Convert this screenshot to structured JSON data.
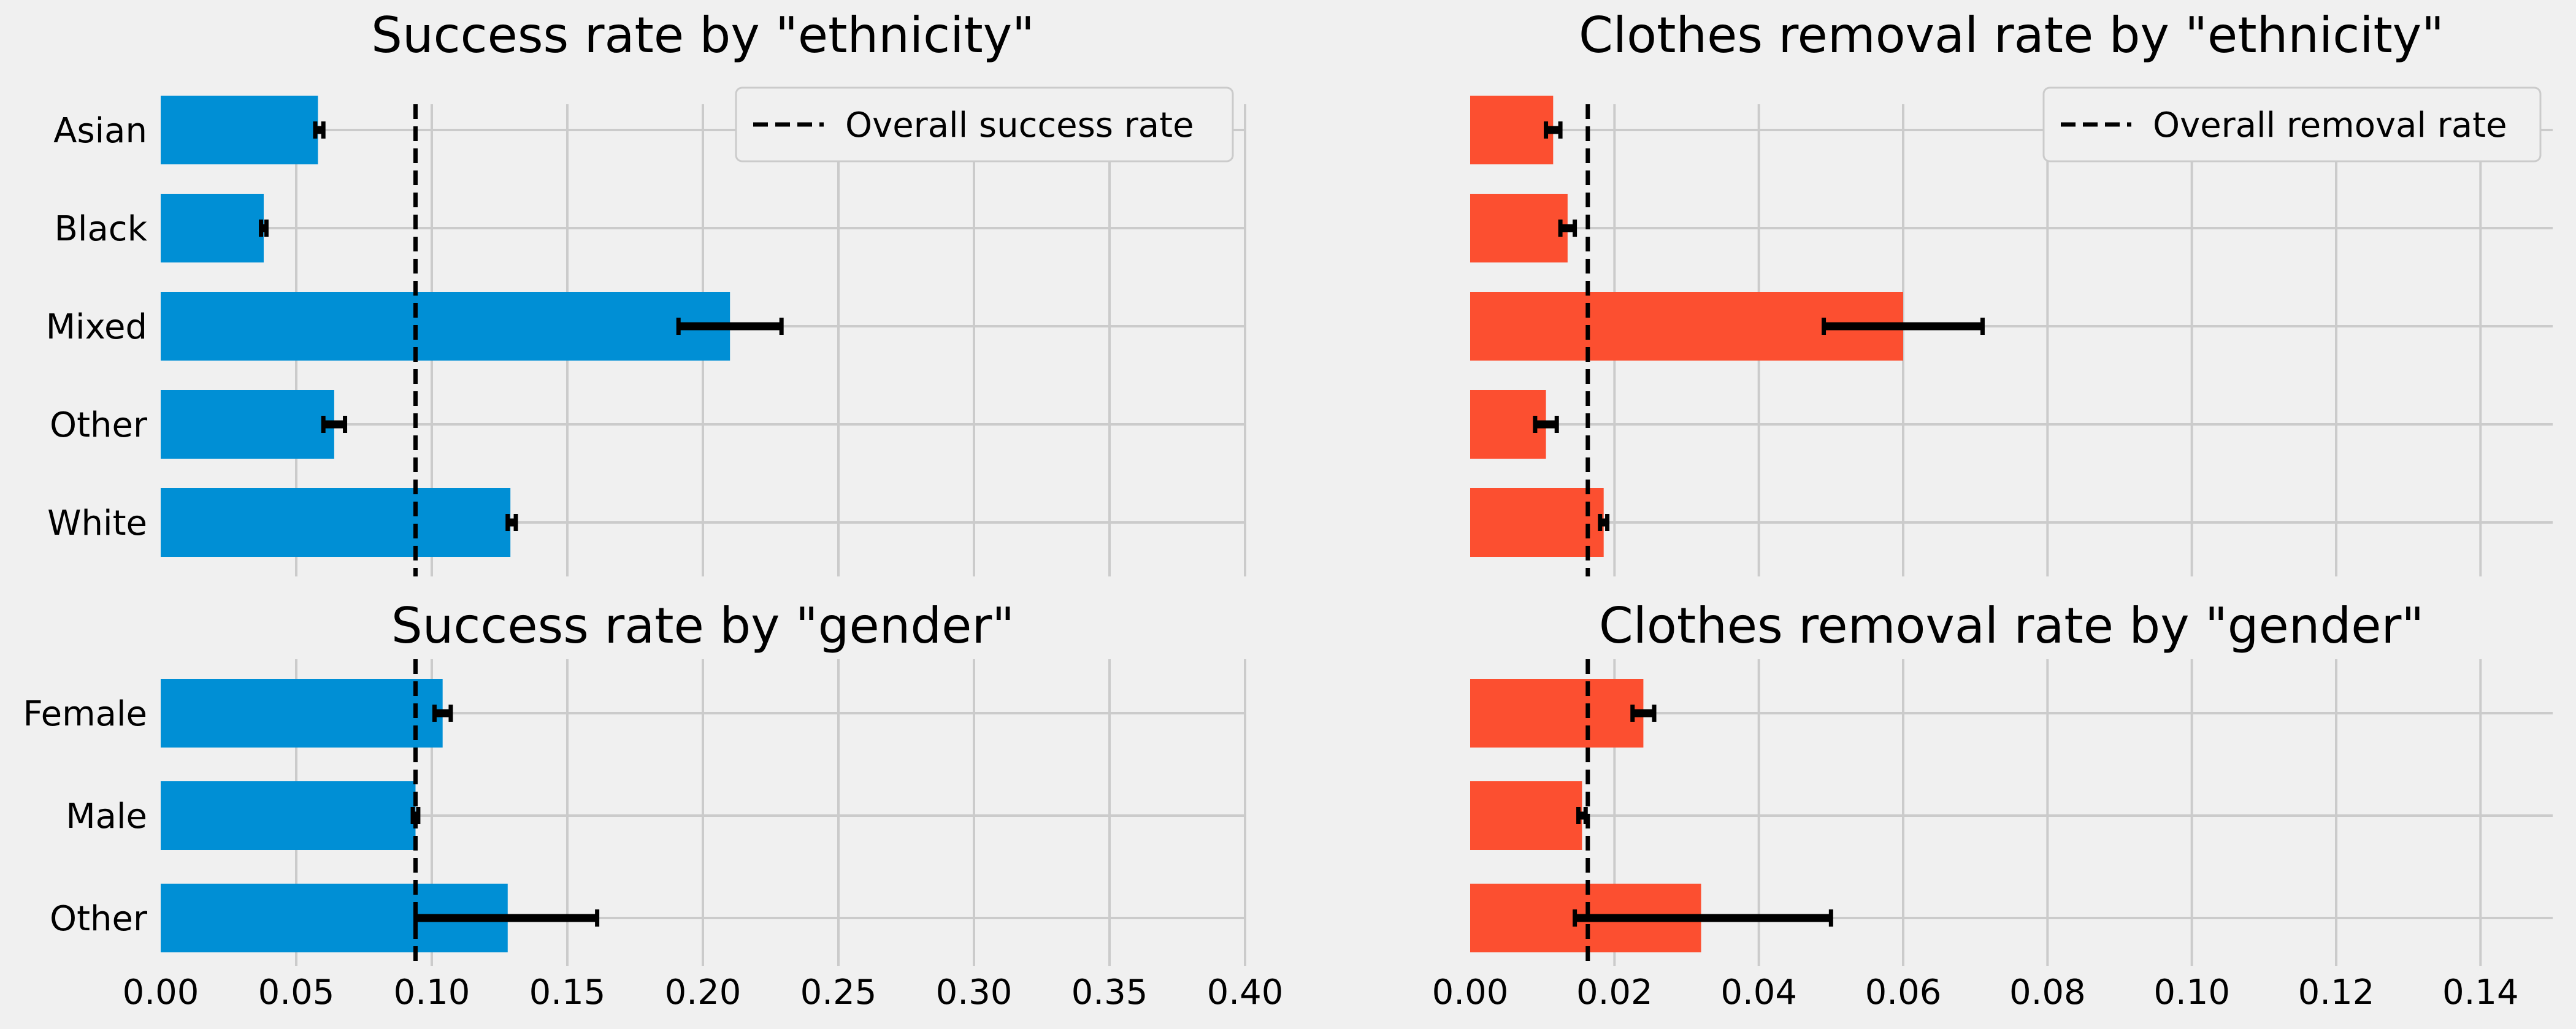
{
  "colors": {
    "success": "#008fd5",
    "removal": "#fc4f30",
    "background": "#f0f0f0",
    "grid": "#cbcbcb",
    "errorbar": "#000000",
    "refline": "#000000"
  },
  "chart_data": [
    {
      "type": "bar",
      "orientation": "horizontal",
      "title": "Success rate by \"ethnicity\"",
      "categories": [
        "Asian",
        "Black",
        "Mixed",
        "Other",
        "White"
      ],
      "values": [
        0.058,
        0.038,
        0.21,
        0.064,
        0.129
      ],
      "error_low": [
        0.057,
        0.037,
        0.191,
        0.06,
        0.128
      ],
      "error_high": [
        0.06,
        0.039,
        0.229,
        0.068,
        0.131
      ],
      "reference_line": {
        "value": 0.094,
        "label": "Overall success rate"
      },
      "xlim": [
        0,
        0.4
      ],
      "xticks": [
        "0.00",
        "0.05",
        "0.10",
        "0.15",
        "0.20",
        "0.25",
        "0.30",
        "0.35",
        "0.40"
      ],
      "show_xticks": false,
      "legend": "top-right",
      "grid": true,
      "color_key": "success"
    },
    {
      "type": "bar",
      "orientation": "horizontal",
      "title": "Clothes removal rate by \"ethnicity\"",
      "categories": [
        "Asian",
        "Black",
        "Mixed",
        "Other",
        "White"
      ],
      "values": [
        0.0115,
        0.0135,
        0.06,
        0.0105,
        0.0185
      ],
      "error_low": [
        0.0105,
        0.0125,
        0.049,
        0.009,
        0.018
      ],
      "error_high": [
        0.0125,
        0.0145,
        0.071,
        0.012,
        0.019
      ],
      "reference_line": {
        "value": 0.0163,
        "label": "Overall removal rate"
      },
      "xlim": [
        0,
        0.15
      ],
      "xticks": [
        "0.00",
        "0.02",
        "0.04",
        "0.06",
        "0.08",
        "0.10",
        "0.12",
        "0.14"
      ],
      "show_xticks": false,
      "legend": "top-right",
      "grid": true,
      "color_key": "removal"
    },
    {
      "type": "bar",
      "orientation": "horizontal",
      "title": "Success rate by \"gender\"",
      "categories": [
        "Female",
        "Male",
        "Other"
      ],
      "values": [
        0.104,
        0.094,
        0.128
      ],
      "error_low": [
        0.101,
        0.093,
        0.094
      ],
      "error_high": [
        0.107,
        0.095,
        0.161
      ],
      "reference_line": {
        "value": 0.094,
        "label": "Overall success rate"
      },
      "xlim": [
        0,
        0.4
      ],
      "xticks": [
        "0.00",
        "0.05",
        "0.10",
        "0.15",
        "0.20",
        "0.25",
        "0.30",
        "0.35",
        "0.40"
      ],
      "show_xticks": true,
      "grid": true,
      "color_key": "success"
    },
    {
      "type": "bar",
      "orientation": "horizontal",
      "title": "Clothes removal rate by \"gender\"",
      "categories": [
        "Female",
        "Male",
        "Other"
      ],
      "values": [
        0.024,
        0.0155,
        0.032
      ],
      "error_low": [
        0.0225,
        0.015,
        0.0145
      ],
      "error_high": [
        0.0255,
        0.016,
        0.05
      ],
      "reference_line": {
        "value": 0.0163,
        "label": "Overall removal rate"
      },
      "xlim": [
        0,
        0.15
      ],
      "xticks": [
        "0.00",
        "0.02",
        "0.04",
        "0.06",
        "0.08",
        "0.10",
        "0.12",
        "0.14"
      ],
      "show_xticks": true,
      "grid": true,
      "color_key": "removal"
    }
  ]
}
